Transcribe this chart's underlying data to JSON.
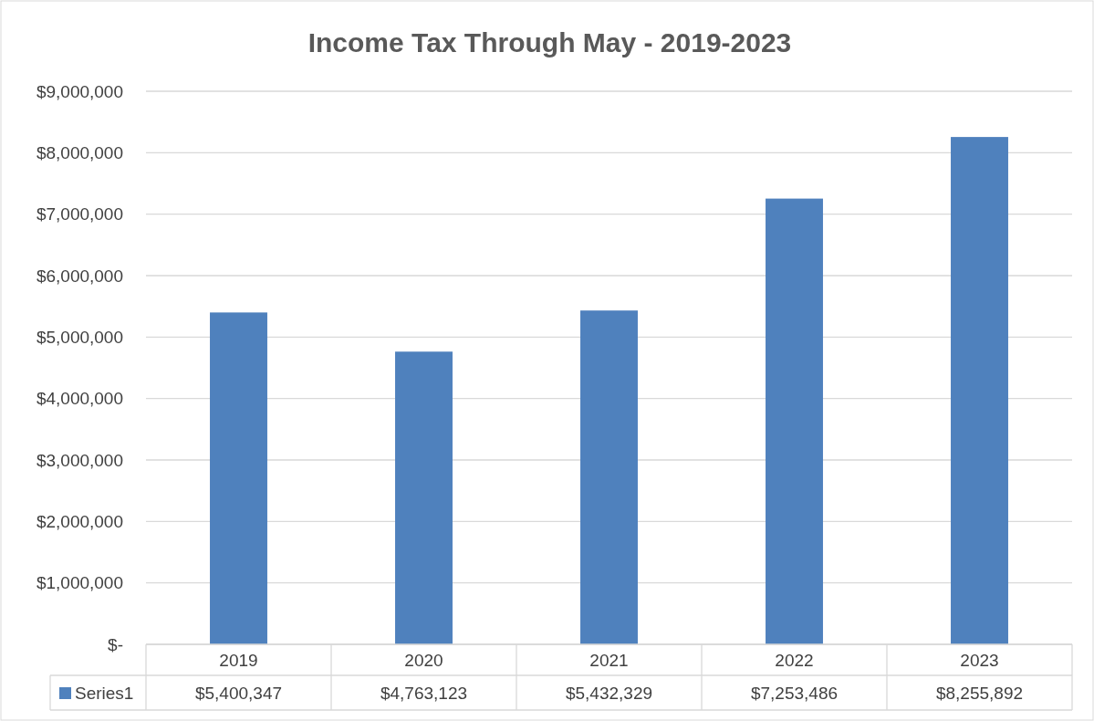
{
  "chart_data": {
    "type": "bar",
    "title": "Income Tax Through May - 2019-2023",
    "categories": [
      "2019",
      "2020",
      "2021",
      "2022",
      "2023"
    ],
    "series": [
      {
        "name": "Series1",
        "color": "#4f81bd",
        "values": [
          5400347,
          4763123,
          5432329,
          7253486,
          8255892
        ],
        "value_labels": [
          "$5,400,347",
          "$4,763,123",
          "$5,432,329",
          "$7,253,486",
          "$8,255,892"
        ]
      }
    ],
    "ylim": [
      0,
      9000000
    ],
    "yticks": [
      {
        "value": 0,
        "label": "$-"
      },
      {
        "value": 1000000,
        "label": "$1,000,000"
      },
      {
        "value": 2000000,
        "label": "$2,000,000"
      },
      {
        "value": 3000000,
        "label": "$3,000,000"
      },
      {
        "value": 4000000,
        "label": "$4,000,000"
      },
      {
        "value": 5000000,
        "label": "$5,000,000"
      },
      {
        "value": 6000000,
        "label": "$6,000,000"
      },
      {
        "value": 7000000,
        "label": "$7,000,000"
      },
      {
        "value": 8000000,
        "label": "$8,000,000"
      },
      {
        "value": 9000000,
        "label": "$9,000,000"
      }
    ],
    "grid": "y",
    "legend": "bottom"
  }
}
